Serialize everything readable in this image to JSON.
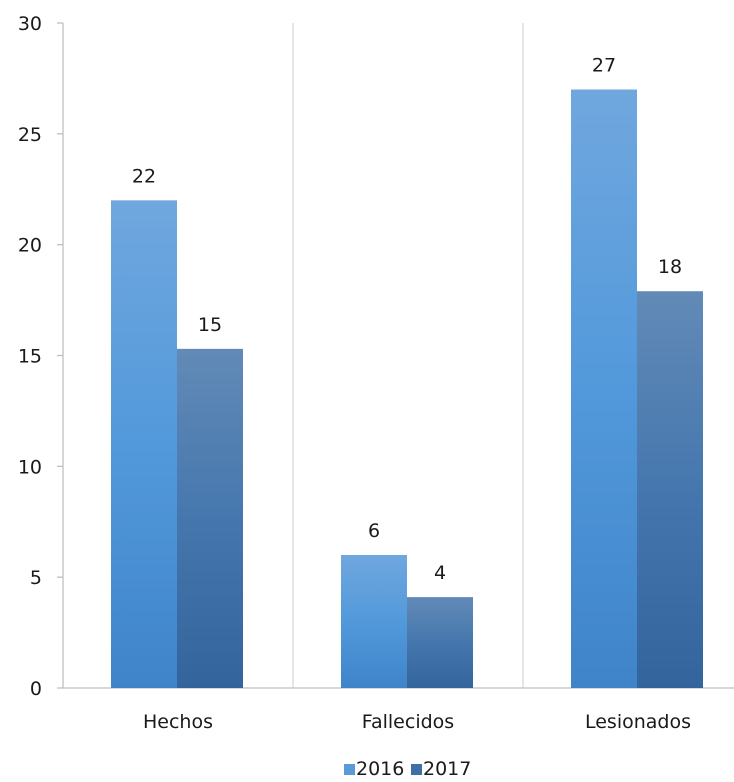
{
  "chart_data": {
    "type": "bar",
    "categories": [
      "Hechos",
      "Fallecidos",
      "Lesionados"
    ],
    "series": [
      {
        "name": "2016",
        "values": [
          22,
          6,
          27
        ],
        "labels": [
          "22",
          "6",
          "27"
        ],
        "color": "#5b9bd5"
      },
      {
        "name": "2017",
        "values": [
          15.3,
          4.1,
          17.9
        ],
        "labels": [
          "15",
          "4",
          "18"
        ],
        "color": "#3f6fa5"
      }
    ],
    "ylim": [
      0,
      30
    ],
    "yticks": [
      0,
      5,
      10,
      15,
      20,
      25,
      30
    ],
    "grid": "vertical lines between categories",
    "legend": "bottom",
    "title": "",
    "xlabel": "",
    "ylabel": ""
  }
}
